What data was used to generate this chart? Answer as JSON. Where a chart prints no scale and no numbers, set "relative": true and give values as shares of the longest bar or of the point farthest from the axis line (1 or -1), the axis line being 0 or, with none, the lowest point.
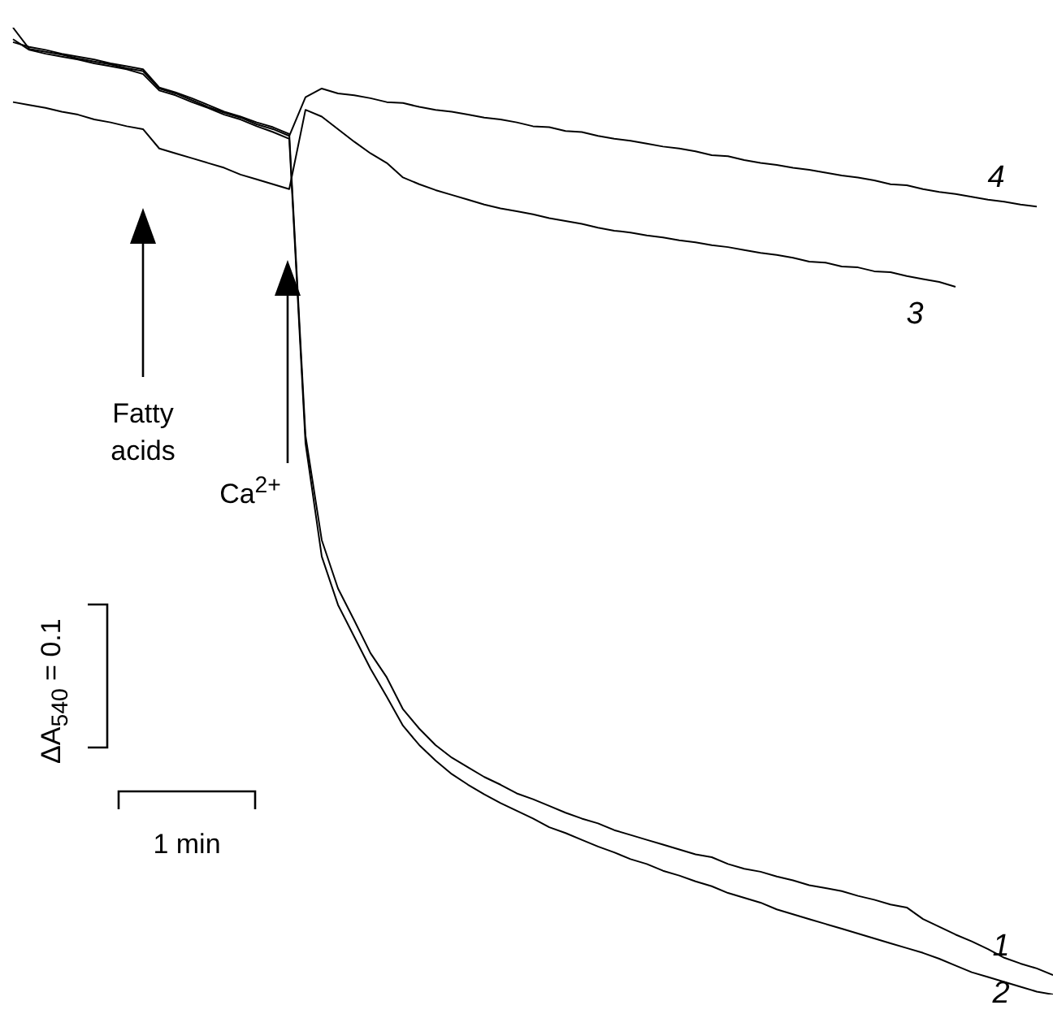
{
  "chart_data": {
    "type": "line",
    "relative": true,
    "legend": false,
    "marker": "none",
    "line_style": "solid",
    "categories": [
      null,
      null,
      null,
      null,
      null,
      null,
      null,
      null,
      null,
      null,
      null,
      null,
      null,
      null,
      null,
      null,
      null,
      null,
      null,
      null,
      null,
      null,
      null,
      null,
      null,
      null,
      null,
      null,
      null,
      null,
      null,
      null,
      null,
      null,
      null,
      null,
      null,
      null,
      null,
      null,
      null,
      null,
      null,
      null,
      null,
      null,
      null,
      null,
      null,
      null,
      null,
      null,
      null,
      null,
      null,
      null,
      null,
      null,
      null,
      null,
      null,
      null,
      null,
      null,
      null
    ],
    "series": [
      {
        "name": "1",
        "color": "#000000",
        "values": [
          0.985,
          0.98,
          0.977,
          0.973,
          0.97,
          0.967,
          0.963,
          0.96,
          0.957,
          0.938,
          0.933,
          0.927,
          0.92,
          0.913,
          0.908,
          0.902,
          0.897,
          0.89,
          0.578,
          0.47,
          0.42,
          0.387,
          0.353,
          0.328,
          0.295,
          0.275,
          0.258,
          0.245,
          0.235,
          0.225,
          0.217,
          0.208,
          0.202,
          0.195,
          0.188,
          0.182,
          0.177,
          0.17,
          0.165,
          0.16,
          0.155,
          0.15,
          0.145,
          0.142,
          0.135,
          0.13,
          0.127,
          0.122,
          0.118,
          0.113,
          0.11,
          0.107,
          0.102,
          0.098,
          0.093,
          0.09,
          0.078,
          0.07,
          0.062,
          0.055,
          0.047,
          0.038,
          0.032,
          0.027,
          0.02
        ]
      },
      {
        "name": "2",
        "color": "#000000",
        "values": [
          0.988,
          0.977,
          0.973,
          0.97,
          0.967,
          0.963,
          0.96,
          0.957,
          0.952,
          0.935,
          0.93,
          0.923,
          0.917,
          0.91,
          0.905,
          0.898,
          0.892,
          0.885,
          0.57,
          0.453,
          0.403,
          0.37,
          0.337,
          0.308,
          0.278,
          0.258,
          0.242,
          0.228,
          0.217,
          0.207,
          0.198,
          0.19,
          0.182,
          0.173,
          0.167,
          0.16,
          0.153,
          0.147,
          0.14,
          0.135,
          0.128,
          0.123,
          0.117,
          0.112,
          0.105,
          0.1,
          0.095,
          0.088,
          0.083,
          0.078,
          0.073,
          0.068,
          0.063,
          0.058,
          0.053,
          0.048,
          0.043,
          0.037,
          0.03,
          0.023,
          0.018,
          0.013,
          0.008,
          0.003,
          0
        ]
      },
      {
        "name": "3",
        "color": "#000000",
        "values": [
          0.923,
          0.92,
          0.917,
          0.913,
          0.91,
          0.905,
          0.902,
          0.898,
          0.895,
          0.875,
          0.87,
          0.865,
          0.86,
          0.855,
          0.848,
          0.843,
          0.838,
          0.833,
          0.915,
          0.908,
          0.895,
          0.882,
          0.87,
          0.86,
          0.845,
          0.838,
          0.832,
          0.827,
          0.822,
          0.817,
          0.813,
          0.81,
          0.807,
          0.803,
          0.8,
          0.797,
          0.793,
          0.79,
          0.788,
          0.785,
          0.783,
          0.78,
          0.778,
          0.775,
          0.773,
          0.77,
          0.767,
          0.765,
          0.762,
          0.758,
          0.757,
          0.753,
          0.752,
          0.748,
          0.747,
          0.743,
          0.74,
          0.737,
          0.732,
          null,
          null,
          null,
          null,
          null,
          null
        ]
      },
      {
        "name": "4",
        "color": "#000000",
        "values": [
          1,
          0.978,
          0.975,
          0.972,
          0.968,
          0.965,
          0.962,
          0.958,
          0.955,
          0.937,
          0.932,
          0.925,
          0.918,
          0.912,
          0.907,
          0.9,
          0.895,
          0.888,
          0.928,
          0.937,
          0.932,
          0.93,
          0.927,
          0.923,
          0.922,
          0.918,
          0.915,
          0.913,
          0.91,
          0.907,
          0.905,
          0.902,
          0.898,
          0.897,
          0.893,
          0.892,
          0.888,
          0.885,
          0.883,
          0.88,
          0.877,
          0.875,
          0.872,
          0.868,
          0.867,
          0.863,
          0.86,
          0.858,
          0.855,
          0.853,
          0.85,
          0.847,
          0.845,
          0.842,
          0.838,
          0.837,
          0.833,
          0.83,
          0.828,
          0.825,
          0.822,
          0.82,
          0.817,
          0.815,
          null
        ]
      }
    ],
    "annotations": [
      "Fatty acids",
      "Ca$^{2+}$",
      "ΔA$_{540}$ = 0.1",
      "1 min"
    ]
  }
}
